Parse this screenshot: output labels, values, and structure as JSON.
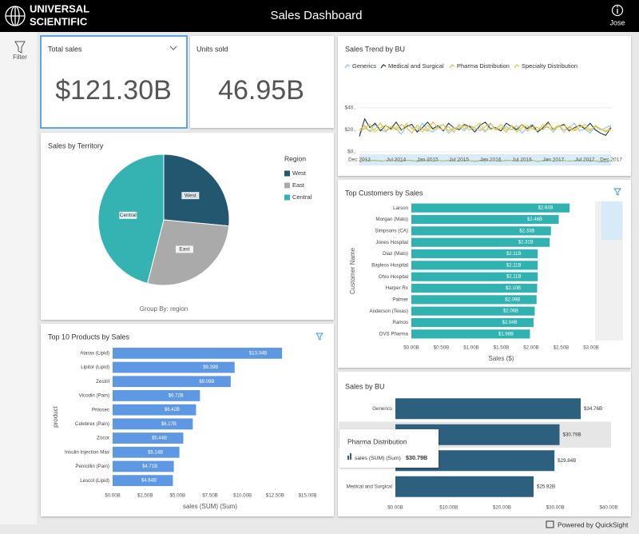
{
  "header": {
    "logo_line1": "UNIVERSAL",
    "logo_line2": "SCIENTIFIC",
    "title": "Sales Dashboard",
    "user": "Jose"
  },
  "sidebar": {
    "filter": "Filter"
  },
  "kpis": [
    {
      "label": "Total sales",
      "value": "$121.30B"
    },
    {
      "label": "Units sold",
      "value": "46.95B"
    }
  ],
  "footer": {
    "text": "Powered by QuickSight"
  },
  "chart_data": [
    {
      "type": "pie",
      "title": "Sales by Territory",
      "legend_title": "Region",
      "note": "Group By: region",
      "categories": [
        "West",
        "East",
        "Central"
      ],
      "values": [
        26.5,
        27.5,
        46
      ],
      "colors": [
        "#23566f",
        "#aaaaaa",
        "#35b3b3"
      ],
      "legend": "right"
    },
    {
      "type": "line",
      "title": "Sales Trend by BU",
      "grid": true,
      "legend": "top",
      "x": [
        "Dec 2013",
        "Jan 2014",
        "Feb 2014",
        "Mar 2014",
        "Apr 2014",
        "May 2014",
        "Jun 2014",
        "Jul 2014",
        "Aug 2014",
        "Sep 2014",
        "Oct 2014",
        "Nov 2014",
        "Dec 2014",
        "Jan 2015",
        "Feb 2015",
        "Mar 2015",
        "Apr 2015",
        "May 2015",
        "Jun 2015",
        "Jul 2015",
        "Aug 2015",
        "Sep 2015",
        "Oct 2015",
        "Nov 2015",
        "Dec 2015",
        "Jan 2016",
        "Feb 2016",
        "Mar 2016",
        "Apr 2016",
        "May 2016",
        "Jun 2016",
        "Jul 2016",
        "Aug 2016",
        "Sep 2016",
        "Oct 2016",
        "Nov 2016",
        "Dec 2016",
        "Jan 2017",
        "Feb 2017",
        "Mar 2017",
        "Apr 2017",
        "May 2017",
        "Jun 2017",
        "Jul 2017",
        "Aug 2017",
        "Sep 2017",
        "Oct 2017",
        "Nov 2017",
        "Dec 2017"
      ],
      "xticks": [
        "Dec 2013",
        "Jul 2014",
        "Jan 2015",
        "Jul 2015",
        "Jan 2016",
        "Jul 2016",
        "Jan 2017",
        "Jul 2017",
        "Dec 2017"
      ],
      "ylim": [
        0,
        45
      ],
      "yticks": [
        {
          "value": 0,
          "label": "$0.."
        },
        {
          "value": 20,
          "label": "$20.."
        },
        {
          "value": 40,
          "label": "$40.."
        }
      ],
      "series": [
        {
          "name": "Generics",
          "color": "#86cbe8",
          "values": [
            17,
            22,
            19,
            25,
            20,
            18,
            23,
            21,
            16,
            24,
            22,
            19,
            26,
            20,
            18,
            22,
            25,
            17,
            21,
            23,
            19,
            24,
            20,
            22,
            18,
            26,
            21,
            19,
            23,
            20,
            24,
            17,
            22,
            25,
            19,
            21,
            23,
            18,
            24,
            20,
            22,
            26,
            19,
            21,
            17,
            23,
            20,
            22,
            24
          ]
        },
        {
          "name": "Medical and Surgical",
          "color": "#1f3b57",
          "values": [
            14,
            30,
            22,
            26,
            19,
            24,
            21,
            27,
            20,
            23,
            25,
            18,
            22,
            27,
            21,
            24,
            19,
            26,
            22,
            20,
            25,
            23,
            18,
            24,
            27,
            21,
            22,
            19,
            26,
            23,
            20,
            25,
            21,
            24,
            18,
            22,
            27,
            20,
            23,
            25,
            19,
            22,
            24,
            21,
            26,
            20,
            17,
            15,
            22
          ]
        },
        {
          "name": "Pharma Distribution",
          "color": "#f2b34a",
          "values": [
            20,
            24,
            18,
            21,
            26,
            19,
            23,
            20,
            25,
            22,
            17,
            24,
            21,
            19,
            27,
            22,
            20,
            23,
            18,
            25,
            21,
            24,
            22,
            19,
            23,
            26,
            20,
            22,
            18,
            24,
            21,
            25,
            19,
            23,
            22,
            20,
            26,
            21,
            24,
            18,
            23,
            20,
            25,
            22,
            19,
            24,
            21,
            18,
            23
          ]
        },
        {
          "name": "Specialty Distribution",
          "color": "#d6d43c",
          "values": [
            19,
            21,
            25,
            18,
            22,
            24,
            20,
            23,
            19,
            26,
            21,
            22,
            18,
            24,
            20,
            23,
            25,
            19,
            22,
            21,
            24,
            20,
            23,
            26,
            19,
            22,
            21,
            25,
            20,
            23,
            18,
            22,
            24,
            21,
            19,
            25,
            22,
            20,
            23,
            24,
            21,
            19,
            22,
            25,
            20,
            23,
            21,
            19,
            20
          ]
        }
      ]
    },
    {
      "type": "bar",
      "orientation": "horizontal",
      "title": "Top Customers by Sales",
      "x_label": "Sales ($)",
      "y_label": "Customer Name",
      "color": "#2fb2b0",
      "categories": [
        "Larson",
        "Morgan (Mato)",
        "Simpsons (CA)",
        "Jones Hospital",
        "Diaz (Mato)",
        "Bayless Hospital",
        "Ohio Hospital",
        "Harper Rx",
        "Palmer",
        "Anderson (Texas)",
        "Ramos",
        "DVS Pharma"
      ],
      "values": [
        2.64,
        2.46,
        2.33,
        2.31,
        2.11,
        2.11,
        2.11,
        2.1,
        2.09,
        2.06,
        2.04,
        1.98
      ],
      "value_labels": [
        "$2.64B",
        "$2.46B",
        "$2.33B",
        "$2.31B",
        "$2.11B",
        "$2.11B",
        "$2.11B",
        "$2.10B",
        "$2.09B",
        "$2.06B",
        "$2.04B",
        "$1.98B"
      ],
      "xlim": [
        0,
        3
      ],
      "xticks": [
        {
          "value": 0,
          "label": "$0.00B"
        },
        {
          "value": 0.5,
          "label": "$0.50B"
        },
        {
          "value": 1,
          "label": "$1.00B"
        },
        {
          "value": 1.5,
          "label": "$1.50B"
        },
        {
          "value": 2,
          "label": "$2.00B"
        },
        {
          "value": 2.5,
          "label": "$2.50B"
        },
        {
          "value": 3,
          "label": "$3.00B"
        }
      ]
    },
    {
      "type": "bar",
      "orientation": "horizontal",
      "title": "Top 10 Products by Sales",
      "x_label": "sales (SUM) (Sum)",
      "y_label": "product",
      "color": "#5e97e2",
      "categories": [
        "Atarax (Lipid)",
        "Lipitor (Lipid)",
        "Zestril",
        "Vicodin (Pain)",
        "Prilosec",
        "Celebrex (Pain)",
        "Zocor",
        "Insulin Injection Max",
        "Penicillin (Pain)",
        "Lescol (Lipid)"
      ],
      "values": [
        13.04,
        9.39,
        9.09,
        6.72,
        6.42,
        6.17,
        5.44,
        5.14,
        4.71,
        4.64
      ],
      "value_labels": [
        "$13.04B",
        "$9.39B",
        "$9.09B",
        "$6.72B",
        "$6.42B",
        "$6.17B",
        "$5.44B",
        "$5.14B",
        "$4.71B",
        "$4.64B"
      ],
      "xlim": [
        0,
        15
      ],
      "xticks": [
        {
          "value": 0,
          "label": "$0.00B"
        },
        {
          "value": 2.5,
          "label": "$2.50B"
        },
        {
          "value": 5,
          "label": "$5.00B"
        },
        {
          "value": 7.5,
          "label": "$7.50B"
        },
        {
          "value": 10,
          "label": "$10.00B"
        },
        {
          "value": 12.5,
          "label": "$12.50B"
        },
        {
          "value": 15,
          "label": "$15.00B"
        }
      ]
    },
    {
      "type": "bar",
      "orientation": "horizontal",
      "title": "Sales by BU",
      "color": "#2d5f7e",
      "categories": [
        "Generics",
        null,
        null,
        "Medical and Surgical"
      ],
      "values": [
        34.76,
        30.79,
        29.84,
        25.92
      ],
      "value_labels": [
        "$34.76B",
        "$30.79B",
        "$29.84B",
        "$25.92B"
      ],
      "xlim": [
        0,
        40
      ],
      "xticks": [
        {
          "value": 0,
          "label": "$0.00B"
        },
        {
          "value": 10,
          "label": "$10.00B"
        },
        {
          "value": 20,
          "label": "$20.00B"
        },
        {
          "value": 30,
          "label": "$30.00B"
        },
        {
          "value": 40,
          "label": "$40.00B"
        }
      ],
      "tooltip": {
        "title": "Pharma Distribution",
        "label": "sales (SUM) (Sum)",
        "value": "$30.79B"
      }
    }
  ]
}
